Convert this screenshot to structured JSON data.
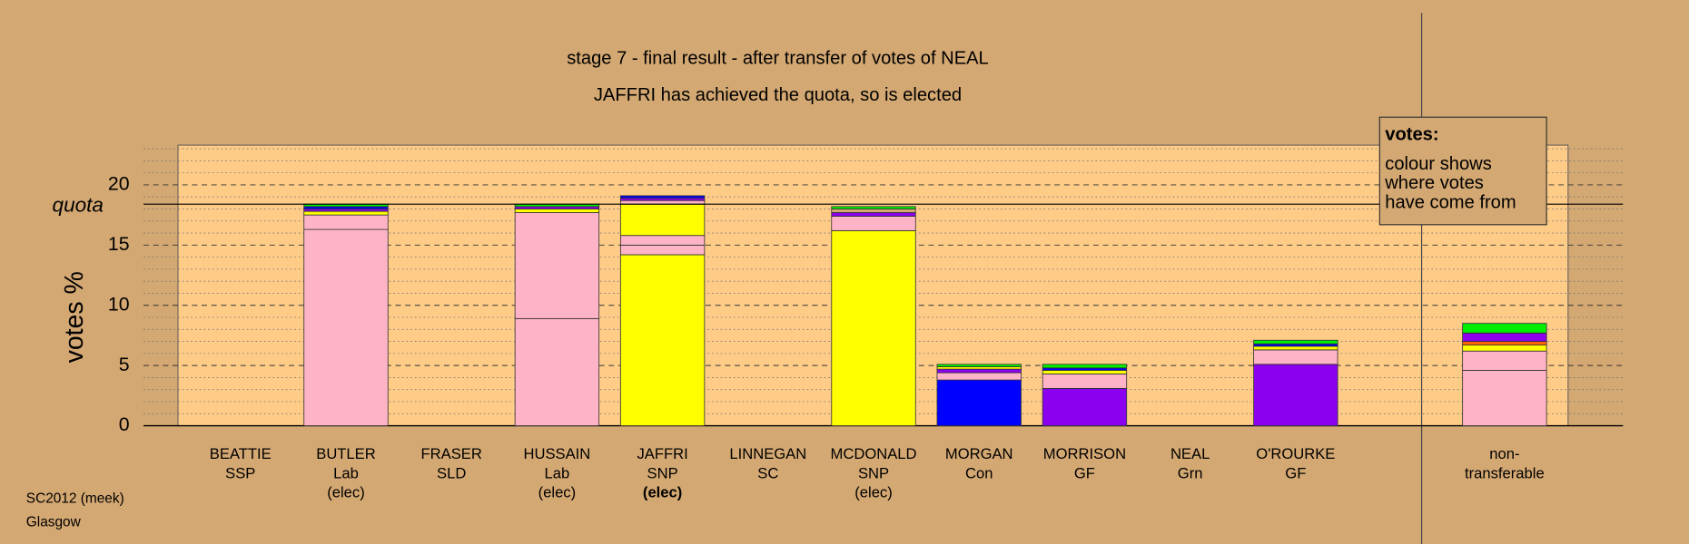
{
  "chart_data": {
    "type": "stacked-bar",
    "title": "stage 7 - final result - after transfer of votes of NEAL",
    "subtitle": "JAFFRI has achieved the quota, so is elected",
    "y_label": "votes %",
    "quota_label": "quota",
    "quota": 18.4,
    "ylim": [
      0,
      23.3
    ],
    "yticks": [
      0,
      5,
      10,
      15,
      20
    ],
    "minor_yticks": [
      1,
      2,
      3,
      4,
      6,
      7,
      8,
      9,
      11,
      12,
      13,
      14,
      16,
      17,
      18,
      19,
      21,
      22,
      23
    ],
    "grid": true,
    "legend": {
      "title": "votes:",
      "lines": [
        "colour shows",
        "where votes",
        "have come from"
      ]
    },
    "footer": [
      "SC2012 (meek)",
      "Glasgow"
    ],
    "candidates": [
      {
        "name": "BEATTIE",
        "party": "SSP",
        "status": null,
        "segments": []
      },
      {
        "name": "BUTLER",
        "party": "Lab",
        "status": "(elec)",
        "segments": [
          {
            "value": 16.3,
            "color": "#ffb3c6"
          },
          {
            "value": 1.2,
            "color": "#ffb3c6"
          },
          {
            "value": 0.3,
            "color": "#ffff00"
          },
          {
            "value": 0.2,
            "color": "#8b00ee"
          },
          {
            "value": 0.2,
            "color": "#0000ff"
          },
          {
            "value": 0.2,
            "color": "#00ee00"
          }
        ]
      },
      {
        "name": "FRASER",
        "party": "SLD",
        "status": null,
        "segments": []
      },
      {
        "name": "HUSSAIN",
        "party": "Lab",
        "status": "(elec)",
        "segments": [
          {
            "value": 8.9,
            "color": "#ffb3c6"
          },
          {
            "value": 8.8,
            "color": "#ffb3c6"
          },
          {
            "value": 0.3,
            "color": "#ffff00"
          },
          {
            "value": 0.2,
            "color": "#8b00ee"
          },
          {
            "value": 0.2,
            "color": "#00ee00"
          }
        ]
      },
      {
        "name": "JAFFRI",
        "party": "SNP",
        "status": "(elec)",
        "bold": true,
        "segments": [
          {
            "value": 14.2,
            "color": "#ffff00"
          },
          {
            "value": 0.8,
            "color": "#ffb3c6"
          },
          {
            "value": 0.8,
            "color": "#ffb3c6"
          },
          {
            "value": 2.6,
            "color": "#ffff00"
          },
          {
            "value": 0.3,
            "color": "#ffb3c6"
          },
          {
            "value": 0.2,
            "color": "#8b00ee"
          },
          {
            "value": 0.2,
            "color": "#0000ff"
          }
        ]
      },
      {
        "name": "LINNEGAN",
        "party": "SC",
        "status": null,
        "segments": []
      },
      {
        "name": "MCDONALD",
        "party": "SNP",
        "status": "(elec)",
        "segments": [
          {
            "value": 16.2,
            "color": "#ffff00"
          },
          {
            "value": 1.2,
            "color": "#ffb3c6"
          },
          {
            "value": 0.3,
            "color": "#8b00ee"
          },
          {
            "value": 0.3,
            "color": "#d4a872"
          },
          {
            "value": 0.2,
            "color": "#00ee00"
          }
        ]
      },
      {
        "name": "MORGAN",
        "party": "Con",
        "status": null,
        "segments": [
          {
            "value": 3.8,
            "color": "#0000ff"
          },
          {
            "value": 0.6,
            "color": "#ffb3c6"
          },
          {
            "value": 0.3,
            "color": "#8b00ee"
          },
          {
            "value": 0.2,
            "color": "#ffff00"
          },
          {
            "value": 0.2,
            "color": "#00ee00"
          }
        ]
      },
      {
        "name": "MORRISON",
        "party": "GF",
        "status": null,
        "segments": [
          {
            "value": 3.1,
            "color": "#8b00ee"
          },
          {
            "value": 1.2,
            "color": "#ffb3c6"
          },
          {
            "value": 0.3,
            "color": "#ffff00"
          },
          {
            "value": 0.2,
            "color": "#0000ff"
          },
          {
            "value": 0.3,
            "color": "#00ee00"
          }
        ]
      },
      {
        "name": "NEAL",
        "party": "Grn",
        "status": null,
        "segments": []
      },
      {
        "name": "O'ROURKE",
        "party": "GF",
        "status": null,
        "segments": [
          {
            "value": 5.1,
            "color": "#8b00ee"
          },
          {
            "value": 1.2,
            "color": "#ffb3c6"
          },
          {
            "value": 0.3,
            "color": "#ffff00"
          },
          {
            "value": 0.2,
            "color": "#0000ff"
          },
          {
            "value": 0.3,
            "color": "#00ee00"
          }
        ]
      }
    ],
    "nontransferable": {
      "label": [
        "non-",
        "transferable"
      ],
      "segments": [
        {
          "value": 4.6,
          "color": "#ffb3c6"
        },
        {
          "value": 1.6,
          "color": "#ffb3c6"
        },
        {
          "value": 0.5,
          "color": "#ffff00"
        },
        {
          "value": 0.3,
          "color": "#ff6600"
        },
        {
          "value": 0.7,
          "color": "#8b00ee"
        },
        {
          "value": 0.8,
          "color": "#00ee00"
        }
      ]
    }
  }
}
